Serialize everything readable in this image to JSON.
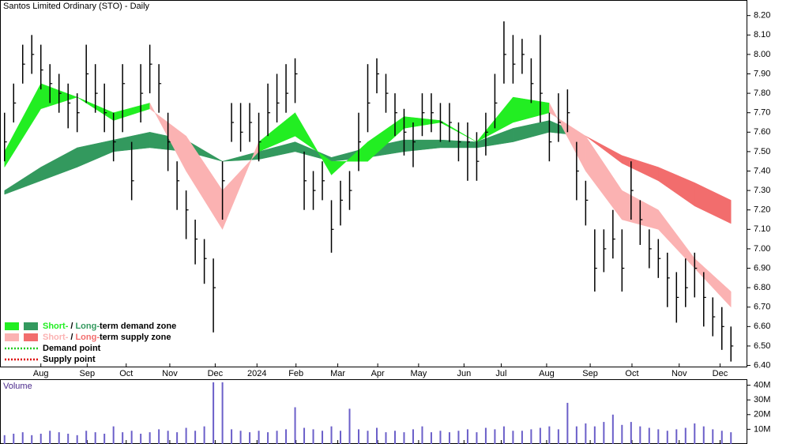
{
  "chart_data": {
    "type": "ohlc",
    "title": "Santos Limited Ordinary (STO) - Daily",
    "xlim": [
      -0.5,
      80.5
    ],
    "xticks": [
      {
        "value": 4.0,
        "label": "Aug"
      },
      {
        "value": 9.1,
        "label": "Sep"
      },
      {
        "value": 13.4,
        "label": "Oct"
      },
      {
        "value": 18.2,
        "label": "Nov"
      },
      {
        "value": 23.2,
        "label": "Dec"
      },
      {
        "value": 27.8,
        "label": "2024"
      },
      {
        "value": 32.1,
        "label": "Feb"
      },
      {
        "value": 36.7,
        "label": "Mar"
      },
      {
        "value": 41.1,
        "label": "Apr"
      },
      {
        "value": 45.6,
        "label": "May"
      },
      {
        "value": 50.6,
        "label": "Jun"
      },
      {
        "value": 54.7,
        "label": "Jul"
      },
      {
        "value": 59.7,
        "label": "Aug"
      },
      {
        "value": 64.5,
        "label": "Sep"
      },
      {
        "value": 69.1,
        "label": "Oct"
      },
      {
        "value": 74.3,
        "label": "Nov"
      },
      {
        "value": 78.8,
        "label": "Dec"
      }
    ],
    "ylim": [
      6.39,
      8.28
    ],
    "yticks": [
      {
        "value": 6.4,
        "label": "6.40"
      },
      {
        "value": 6.5,
        "label": "6.50"
      },
      {
        "value": 6.6,
        "label": "6.60"
      },
      {
        "value": 6.7,
        "label": "6.70"
      },
      {
        "value": 6.8,
        "label": "6.80"
      },
      {
        "value": 6.9,
        "label": "6.90"
      },
      {
        "value": 7.0,
        "label": "7.00"
      },
      {
        "value": 7.1,
        "label": "7.10"
      },
      {
        "value": 7.2,
        "label": "7.20"
      },
      {
        "value": 7.3,
        "label": "7.30"
      },
      {
        "value": 7.4,
        "label": "7.40"
      },
      {
        "value": 7.5,
        "label": "7.50"
      },
      {
        "value": 7.6,
        "label": "7.60"
      },
      {
        "value": 7.7,
        "label": "7.70"
      },
      {
        "value": 7.8,
        "label": "7.80"
      },
      {
        "value": 7.9,
        "label": "7.90"
      },
      {
        "value": 8.0,
        "label": "8.00"
      },
      {
        "value": 8.1,
        "label": "8.10"
      },
      {
        "value": 8.2,
        "label": "8.20"
      }
    ],
    "bar_color": "#000000",
    "high": [
      7.7,
      7.85,
      8.05,
      8.1,
      8.05,
      7.95,
      7.9,
      7.85,
      7.8,
      8.05,
      7.95,
      7.85,
      7.7,
      7.95,
      7.55,
      7.95,
      8.05,
      7.95,
      7.7,
      7.45,
      7.3,
      7.15,
      7.05,
      6.95,
      7.45,
      7.75,
      7.75,
      7.75,
      7.7,
      7.85,
      7.9,
      7.95,
      7.98,
      7.5,
      7.4,
      7.45,
      7.25,
      7.35,
      7.4,
      7.7,
      7.95,
      7.98,
      7.9,
      7.8,
      7.72,
      7.65,
      7.8,
      7.8,
      7.75,
      7.75,
      7.65,
      7.65,
      7.6,
      7.7,
      7.9,
      8.17,
      8.1,
      8.08,
      7.98,
      8.1,
      7.7,
      7.8,
      7.82,
      7.55,
      7.35,
      7.1,
      7.1,
      7.2,
      7.1,
      7.45,
      7.25,
      7.1,
      7.05,
      6.98,
      6.88,
      6.95,
      6.98,
      6.88,
      6.75,
      6.7,
      6.6
    ],
    "low": [
      7.45,
      7.65,
      7.85,
      7.9,
      7.82,
      7.75,
      7.7,
      7.62,
      7.6,
      7.75,
      7.7,
      7.6,
      7.45,
      7.6,
      7.25,
      7.65,
      7.8,
      7.7,
      7.4,
      7.2,
      7.05,
      6.92,
      6.82,
      6.57,
      7.15,
      7.55,
      7.5,
      7.55,
      7.45,
      7.58,
      7.65,
      7.7,
      7.75,
      7.2,
      7.2,
      7.25,
      6.98,
      7.12,
      7.2,
      7.4,
      7.6,
      7.8,
      7.7,
      7.58,
      7.48,
      7.42,
      7.58,
      7.6,
      7.55,
      7.55,
      7.45,
      7.35,
      7.35,
      7.48,
      7.62,
      7.85,
      7.85,
      7.9,
      7.75,
      7.65,
      7.45,
      7.55,
      7.6,
      7.25,
      7.12,
      6.78,
      6.88,
      6.95,
      6.78,
      7.15,
      7.02,
      6.9,
      6.85,
      6.7,
      6.62,
      6.7,
      6.75,
      6.6,
      6.55,
      6.48,
      6.42
    ],
    "close": [
      7.55,
      7.75,
      7.95,
      8.0,
      7.92,
      7.85,
      7.8,
      7.75,
      7.7,
      7.9,
      7.8,
      7.7,
      7.55,
      7.85,
      7.35,
      7.8,
      7.95,
      7.85,
      7.55,
      7.35,
      7.2,
      7.05,
      6.95,
      6.8,
      7.35,
      7.65,
      7.6,
      7.65,
      7.55,
      7.7,
      7.75,
      7.8,
      7.9,
      7.35,
      7.3,
      7.35,
      7.1,
      7.25,
      7.3,
      7.55,
      7.75,
      7.9,
      7.8,
      7.7,
      7.6,
      7.55,
      7.7,
      7.7,
      7.65,
      7.65,
      7.55,
      7.55,
      7.45,
      7.6,
      7.75,
      8.0,
      7.95,
      8.0,
      7.85,
      7.8,
      7.55,
      7.65,
      7.7,
      7.4,
      7.25,
      6.9,
      7.0,
      7.05,
      6.9,
      7.3,
      7.15,
      7.0,
      6.95,
      6.85,
      6.75,
      6.8,
      6.9,
      6.75,
      6.65,
      6.6,
      6.5
    ],
    "bands": [
      {
        "x": [
          0,
          4,
          8,
          12,
          16,
          20,
          24,
          28,
          32,
          36,
          40,
          44,
          48,
          52,
          56,
          60,
          64,
          68,
          72,
          76,
          80
        ],
        "a": [
          7.3,
          7.42,
          7.52,
          7.56,
          7.6,
          7.56,
          7.45,
          7.5,
          7.55,
          7.47,
          7.52,
          7.56,
          7.56,
          7.55,
          7.62,
          7.66,
          7.58,
          7.44,
          7.35,
          7.22,
          7.13
        ],
        "b": [
          7.28,
          7.35,
          7.42,
          7.5,
          7.52,
          7.5,
          7.45,
          7.46,
          7.5,
          7.45,
          7.47,
          7.5,
          7.52,
          7.52,
          7.55,
          7.6,
          7.58,
          7.48,
          7.42,
          7.34,
          7.25
        ],
        "demand_color": "#33995e",
        "supply_color": "#f26d6d"
      },
      {
        "x": [
          0,
          4,
          8,
          12,
          16,
          20,
          24,
          28,
          32,
          36,
          40,
          44,
          48,
          52,
          56,
          60,
          64,
          68,
          72,
          76,
          80
        ],
        "a": [
          7.5,
          7.85,
          7.78,
          7.7,
          7.75,
          7.4,
          7.1,
          7.55,
          7.7,
          7.38,
          7.55,
          7.68,
          7.66,
          7.55,
          7.78,
          7.75,
          7.4,
          7.15,
          7.1,
          6.9,
          6.7
        ],
        "b": [
          7.42,
          7.72,
          7.78,
          7.66,
          7.72,
          7.58,
          7.3,
          7.5,
          7.58,
          7.45,
          7.45,
          7.62,
          7.65,
          7.55,
          7.65,
          7.7,
          7.58,
          7.3,
          7.2,
          6.95,
          6.78
        ],
        "demand_color": "#22ee22",
        "supply_color": "#fbb2b2"
      }
    ],
    "volume": {
      "title": "Volume",
      "color": "#6b5fc9",
      "ylim": [
        0,
        43
      ],
      "yticks": [
        {
          "value": 10,
          "label": "10M"
        },
        {
          "value": 20,
          "label": "20M"
        },
        {
          "value": 30,
          "label": "30M"
        },
        {
          "value": 40,
          "label": "40M"
        }
      ],
      "values": [
        6,
        7,
        8,
        6,
        7,
        9,
        8,
        7,
        6,
        9,
        8,
        7,
        12,
        8,
        9,
        7,
        8,
        10,
        9,
        8,
        11,
        9,
        12,
        42,
        42,
        10,
        9,
        8,
        9,
        8,
        9,
        10,
        25,
        11,
        10,
        9,
        12,
        9,
        24,
        10,
        9,
        11,
        8,
        9,
        8,
        10,
        12,
        8,
        9,
        8,
        9,
        10,
        8,
        11,
        10,
        12,
        9,
        9,
        10,
        11,
        12,
        10,
        28,
        12,
        14,
        12,
        15,
        20,
        13,
        15,
        12,
        11,
        10,
        9,
        10,
        11,
        14,
        12,
        10,
        9,
        8
      ]
    },
    "legend": [
      {
        "parts": [
          "Short-",
          "/",
          "Long-",
          "term demand zone"
        ],
        "colors": [
          "#22ee22",
          "#33995e"
        ]
      },
      {
        "parts": [
          "Short-",
          "/",
          "Long-",
          "term supply zone"
        ],
        "colors": [
          "#fbb2b2",
          "#f26d6d"
        ]
      },
      {
        "parts": [
          "Demand point"
        ],
        "colors": [
          "#22cc22"
        ]
      },
      {
        "parts": [
          "Supply point"
        ],
        "colors": [
          "#dd0000"
        ]
      }
    ]
  }
}
